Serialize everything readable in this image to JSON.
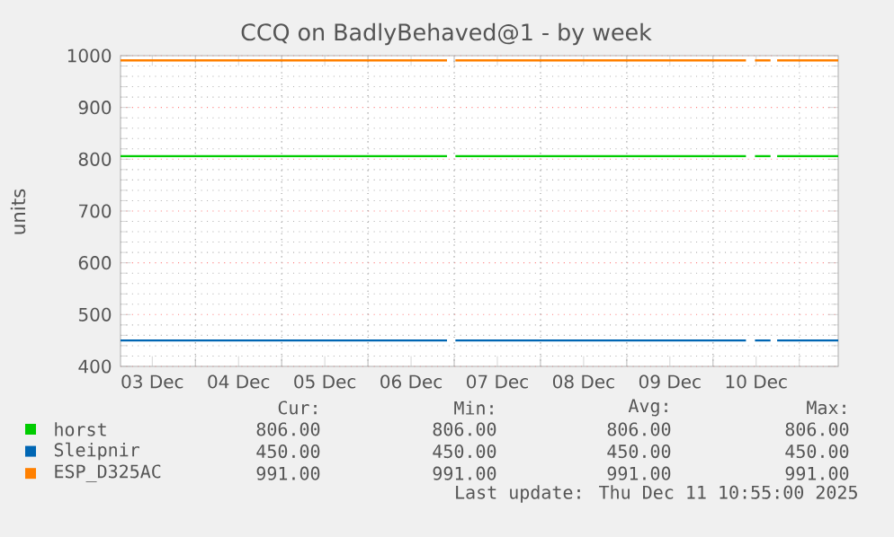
{
  "chart_data": {
    "type": "line",
    "title": "CCQ on BadlyBehaved@1 - by week",
    "ylabel": "units",
    "x": [
      "2025-12-03T03:10",
      "2025-12-06T22:00",
      "2025-12-06T23:00",
      "2025-12-07T00:20",
      "2025-12-10T09:10",
      "2025-12-10T10:30",
      "2025-12-10T11:40",
      "2025-12-10T16:00",
      "2025-12-10T17:00",
      "2025-12-10T17:50",
      "2025-12-11T10:50"
    ],
    "series": [
      {
        "name": "horst",
        "color": "#00cc00",
        "values": [
          806,
          806,
          null,
          806,
          806,
          null,
          806,
          806,
          null,
          806,
          806
        ]
      },
      {
        "name": "Sleipnir",
        "color": "#0066b3",
        "values": [
          450,
          450,
          null,
          450,
          450,
          null,
          450,
          450,
          null,
          450,
          450
        ]
      },
      {
        "name": "ESP_D325AC",
        "color": "#ff8000",
        "values": [
          991,
          991,
          null,
          991,
          991,
          null,
          991,
          991,
          null,
          991,
          991
        ]
      }
    ],
    "xlim": [
      "2025-12-03T03:10",
      "2025-12-11T10:50"
    ],
    "xticks": [
      {
        "value": "2025-12-03T12:00",
        "label": "03 Dec"
      },
      {
        "value": "2025-12-04T00:00",
        "label": null
      },
      {
        "value": "2025-12-04T12:00",
        "label": "04 Dec"
      },
      {
        "value": "2025-12-05T00:00",
        "label": null
      },
      {
        "value": "2025-12-05T12:00",
        "label": "05 Dec"
      },
      {
        "value": "2025-12-06T00:00",
        "label": null
      },
      {
        "value": "2025-12-06T12:00",
        "label": "06 Dec"
      },
      {
        "value": "2025-12-07T00:00",
        "label": null
      },
      {
        "value": "2025-12-07T12:00",
        "label": "07 Dec"
      },
      {
        "value": "2025-12-08T00:00",
        "label": null
      },
      {
        "value": "2025-12-08T12:00",
        "label": "08 Dec"
      },
      {
        "value": "2025-12-09T00:00",
        "label": null
      },
      {
        "value": "2025-12-09T12:00",
        "label": "09 Dec"
      },
      {
        "value": "2025-12-10T00:00",
        "label": null
      },
      {
        "value": "2025-12-10T12:00",
        "label": "10 Dec"
      },
      {
        "value": "2025-12-11T00:00",
        "label": null
      }
    ],
    "ylim": [
      400,
      1000
    ],
    "yticks": [
      400,
      500,
      600,
      700,
      800,
      900,
      1000
    ],
    "grid": true,
    "legend": "bottom",
    "marker": "none",
    "line_style": "solid",
    "annotations": [
      "Cur:",
      "Min:",
      "Avg:",
      "Max:",
      "806.00",
      "806.00",
      "806.00",
      "806.00",
      "450.00",
      "450.00",
      "450.00",
      "450.00",
      "991.00",
      "991.00",
      "991.00",
      "991.00",
      "Last update: Thu Dec 11 10:55:00 2025"
    ]
  }
}
